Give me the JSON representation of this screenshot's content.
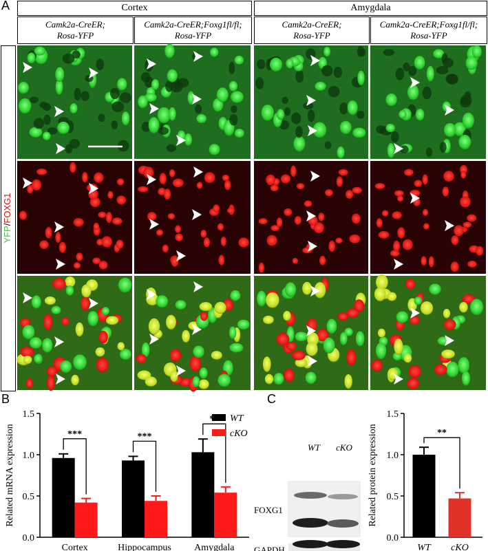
{
  "panel_labels": {
    "a": "A",
    "b": "B",
    "c": "C"
  },
  "panel_a": {
    "regions": [
      "Cortex",
      "Amygdala"
    ],
    "genotypes": [
      {
        "line1": "Camk2a-CreER;",
        "line2": "Rosa-YFP"
      },
      {
        "line1": "Camk2a-CreER;Foxg1fl/fl;",
        "line2": "Rosa-YFP"
      },
      {
        "line1": "Camk2a-CreER;",
        "line2": "Rosa-YFP"
      },
      {
        "line1": "Camk2a-CreER;Foxg1fl/fl;",
        "line2": "Rosa-YFP"
      }
    ],
    "row_label_green": "YFP",
    "row_label_sep": "/",
    "row_label_red": "FOXG1",
    "colors": {
      "green": "#3dd13d",
      "red": "#e01010",
      "merge": "#c8e020"
    }
  },
  "western": {
    "lane_labels": [
      "WT",
      "cKO"
    ],
    "band_labels": [
      "FOXG1",
      "GAPDH"
    ]
  },
  "chart_data": [
    {
      "type": "bar",
      "categories": [
        "Cortex",
        "Hippocampus",
        "Amygdala"
      ],
      "series": [
        {
          "name": "WT",
          "values": [
            0.96,
            0.93,
            1.03
          ],
          "errors": [
            0.05,
            0.05,
            0.16
          ],
          "color": "#000000"
        },
        {
          "name": "cKO",
          "values": [
            0.42,
            0.44,
            0.54
          ],
          "errors": [
            0.05,
            0.06,
            0.07
          ],
          "color": "#ff1a1a"
        }
      ],
      "significance": [
        "***",
        "***",
        "**"
      ],
      "ylabel": "Related mRNA expression",
      "ylim": [
        0,
        1.5
      ],
      "yticks": [
        "0.0",
        "0.5",
        "1.0",
        "1.5"
      ],
      "legend": "top-right"
    },
    {
      "type": "bar",
      "categories": [
        "WT",
        "cKO"
      ],
      "values": [
        1.0,
        0.47
      ],
      "errors": [
        0.09,
        0.07
      ],
      "colors": [
        "#000000",
        "#e0302a"
      ],
      "significance": [
        "**"
      ],
      "ylabel": "Related protein expression",
      "ylim": [
        0,
        1.5
      ],
      "yticks": [
        "0.0",
        "0.5",
        "1.0",
        "1.5"
      ]
    }
  ]
}
